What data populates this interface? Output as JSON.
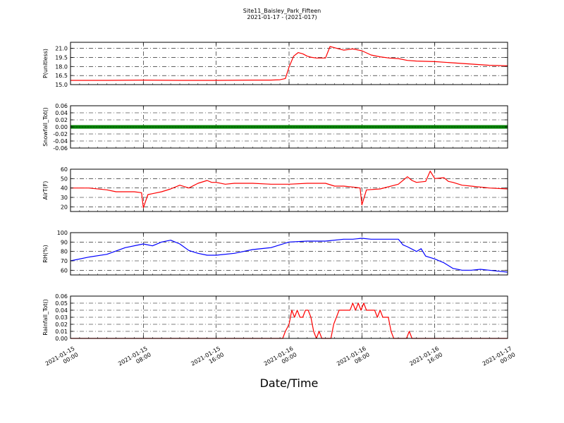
{
  "header": {
    "title": "Site11_Baisley_Park_Fifteen",
    "subtitle": "2021-01-17 - (2021-017)"
  },
  "chart_data": {
    "type": "line",
    "xlabel": "Date/Time",
    "x_range_hours": [
      0,
      48
    ],
    "x_ticks": [
      {
        "hour": 0,
        "label": [
          "2021-01-15",
          "00:00"
        ]
      },
      {
        "hour": 8,
        "label": [
          "2021-01-15",
          "08:00"
        ]
      },
      {
        "hour": 16,
        "label": [
          "2021-01-15",
          "16:00"
        ]
      },
      {
        "hour": 24,
        "label": [
          "2021-01-16",
          "00:00"
        ]
      },
      {
        "hour": 32,
        "label": [
          "2021-01-16",
          "08:00"
        ]
      },
      {
        "hour": 40,
        "label": [
          "2021-01-16",
          "16:00"
        ]
      },
      {
        "hour": 48,
        "label": [
          "2021-01-17",
          "00:00"
        ]
      }
    ],
    "grid": true,
    "panels": [
      {
        "ylabel": "P(unitless)",
        "ylim": [
          15.0,
          22.0
        ],
        "yticks": [
          15.0,
          16.5,
          18.0,
          19.5,
          21.0
        ],
        "ytick_labels": [
          "15.0",
          "16.5",
          "18.0",
          "19.5",
          "21.0"
        ],
        "color": "#ff0000",
        "style": "line",
        "x": [
          0,
          4,
          8,
          12,
          16,
          20,
          22,
          23,
          23.6,
          24,
          24.5,
          25,
          25.5,
          26,
          26.5,
          27,
          28,
          28.5,
          29,
          29.5,
          30,
          30.5,
          31,
          32,
          33,
          34,
          35,
          36,
          37,
          38,
          40,
          42,
          44,
          46,
          48
        ],
        "y": [
          15.7,
          15.7,
          15.75,
          15.7,
          15.7,
          15.75,
          15.75,
          15.8,
          16.0,
          17.9,
          19.7,
          20.3,
          20.1,
          19.7,
          19.5,
          19.4,
          19.4,
          21.3,
          21.1,
          20.9,
          20.7,
          20.8,
          20.9,
          20.6,
          19.9,
          19.6,
          19.4,
          19.3,
          19.0,
          18.9,
          18.8,
          18.6,
          18.4,
          18.2,
          18.1
        ]
      },
      {
        "ylabel": "Snowfall_Tot()",
        "ylim": [
          -0.06,
          0.06
        ],
        "yticks": [
          -0.06,
          -0.04,
          -0.02,
          0.0,
          0.02,
          0.04,
          0.06
        ],
        "ytick_labels": [
          "-0.06",
          "-0.04",
          "-0.02",
          "0.00",
          "0.02",
          "0.04",
          "0.06"
        ],
        "color": "#008000",
        "style": "thick",
        "x": [
          0,
          48
        ],
        "y": [
          0.0,
          0.0
        ]
      },
      {
        "ylabel": "AirT(F)",
        "ylim": [
          15,
          60
        ],
        "yticks": [
          20,
          30,
          40,
          50,
          60
        ],
        "ytick_labels": [
          "20",
          "30",
          "40",
          "50",
          "60"
        ],
        "color": "#ff0000",
        "style": "line",
        "x": [
          0,
          2,
          4,
          5,
          6,
          7,
          7.8,
          8,
          8.5,
          9,
          10,
          11,
          12,
          13,
          14,
          15,
          15.5,
          16,
          17,
          18,
          20,
          22,
          24,
          26,
          28,
          29,
          30,
          31,
          31.8,
          32,
          32.5,
          34,
          36,
          37,
          37.5,
          38,
          39,
          39.5,
          40,
          41,
          41.5,
          42,
          43,
          44,
          46,
          48
        ],
        "y": [
          40,
          40,
          38,
          36,
          36,
          36,
          35,
          19,
          33,
          34,
          36,
          39,
          43,
          40,
          45,
          48,
          46,
          46,
          44,
          45,
          45,
          44,
          44,
          45,
          45,
          42,
          42,
          41,
          40,
          22,
          38,
          39,
          44,
          52,
          48,
          46,
          47,
          58,
          50,
          51,
          47,
          46,
          43,
          42,
          40,
          39
        ]
      },
      {
        "ylabel": "RH(%)",
        "ylim": [
          55,
          100
        ],
        "yticks": [
          60,
          70,
          80,
          90,
          100
        ],
        "ytick_labels": [
          "60",
          "70",
          "80",
          "90",
          "100"
        ],
        "color": "#0000ff",
        "style": "line",
        "x": [
          0,
          2,
          4,
          6,
          8,
          9,
          10,
          11,
          12,
          13,
          14,
          15,
          16,
          18,
          20,
          22,
          24,
          26,
          28,
          30,
          31,
          32,
          33,
          34,
          35,
          36,
          36.5,
          37,
          38,
          38.5,
          39,
          40,
          40.5,
          41,
          42,
          43,
          44,
          45,
          46,
          47,
          48
        ],
        "y": [
          70,
          74,
          77,
          84,
          88,
          86,
          90,
          92,
          88,
          81,
          78,
          76,
          76,
          78,
          82,
          84,
          90,
          91,
          91,
          93,
          93,
          94,
          93,
          93,
          93,
          93,
          87,
          85,
          80,
          83,
          75,
          72,
          70,
          68,
          62,
          60,
          60,
          61,
          60,
          59,
          58
        ]
      },
      {
        "ylabel": "Rainfall_Tot()",
        "ylim": [
          0.0,
          0.06
        ],
        "yticks": [
          0.0,
          0.01,
          0.02,
          0.03,
          0.04,
          0.05,
          0.06
        ],
        "ytick_labels": [
          "0.00",
          "0.01",
          "0.02",
          "0.03",
          "0.04",
          "0.05",
          "0.06"
        ],
        "color": "#ff0000",
        "style": "line",
        "x": [
          0,
          23.3,
          23.6,
          24,
          24.3,
          24.6,
          24.9,
          25.2,
          25.5,
          25.8,
          26.1,
          26.4,
          26.7,
          27,
          27.3,
          27.6,
          28,
          28.3,
          28.6,
          28.9,
          29.2,
          29.5,
          29.8,
          30.1,
          30.4,
          30.7,
          31,
          31.3,
          31.6,
          31.9,
          32.2,
          32.5,
          32.8,
          33.1,
          33.4,
          33.7,
          34,
          34.3,
          34.6,
          34.9,
          35.2,
          35.5,
          36,
          36.3,
          36.6,
          36.9,
          37.2,
          37.5,
          48
        ],
        "y": [
          0.0,
          0.0,
          0.01,
          0.02,
          0.04,
          0.03,
          0.04,
          0.03,
          0.03,
          0.04,
          0.04,
          0.03,
          0.01,
          0.0,
          0.01,
          0.0,
          0.0,
          0.0,
          0.0,
          0.02,
          0.03,
          0.04,
          0.04,
          0.04,
          0.04,
          0.04,
          0.05,
          0.04,
          0.05,
          0.04,
          0.05,
          0.04,
          0.04,
          0.04,
          0.04,
          0.03,
          0.04,
          0.03,
          0.03,
          0.03,
          0.01,
          0.0,
          0.0,
          0.0,
          0.0,
          0.0,
          0.01,
          0.0,
          0.0
        ]
      }
    ]
  }
}
